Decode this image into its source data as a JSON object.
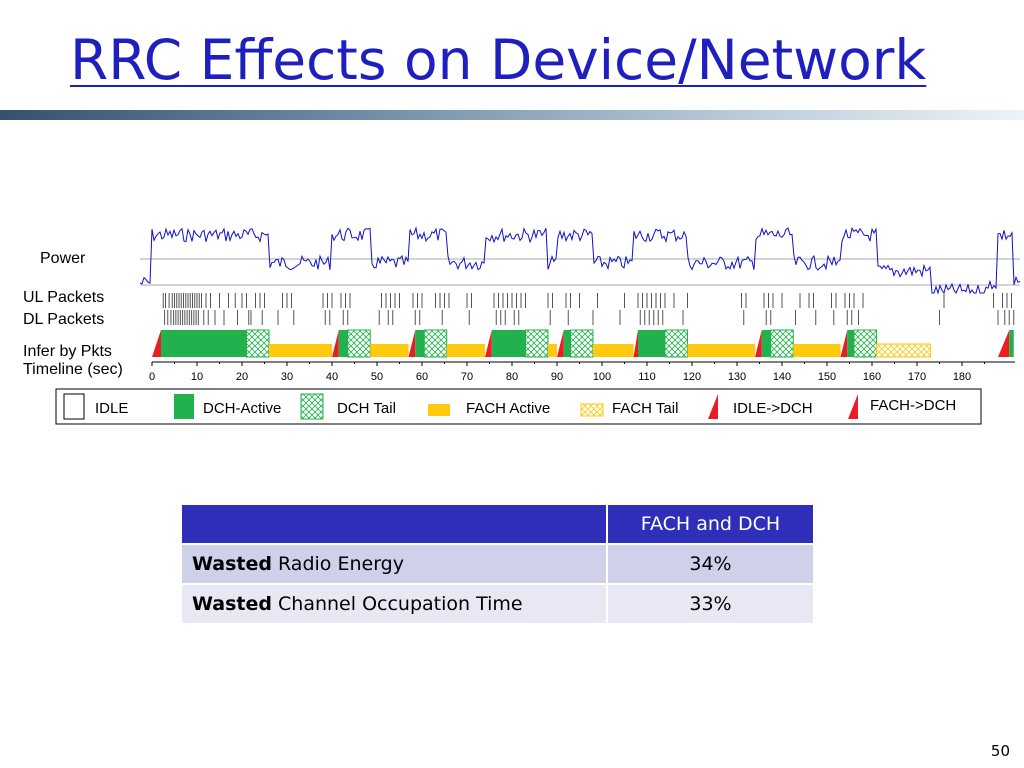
{
  "slide": {
    "title": "RRC Effects on Device/Network",
    "page_number": "50"
  },
  "diagram": {
    "row_labels": {
      "power": "Power",
      "ul_packets": "UL Packets",
      "dl_packets": "DL Packets",
      "infer": "Infer by Pkts",
      "timeline": "Timeline (sec)"
    },
    "timeline_ticks": [
      "0",
      "10",
      "20",
      "30",
      "40",
      "50",
      "60",
      "70",
      "80",
      "90",
      "100",
      "110",
      "120",
      "130",
      "140",
      "150",
      "160",
      "170",
      "180"
    ],
    "states": [
      {
        "state": "idle_to_dch",
        "start": 0,
        "end": 2
      },
      {
        "state": "dch_active",
        "start": 2,
        "end": 21
      },
      {
        "state": "dch_tail",
        "start": 21,
        "end": 26
      },
      {
        "state": "fach_active",
        "start": 26,
        "end": 40
      },
      {
        "state": "idle_to_dch",
        "start": 40,
        "end": 41.5
      },
      {
        "state": "dch_active",
        "start": 41.5,
        "end": 43.5
      },
      {
        "state": "dch_tail",
        "start": 43.5,
        "end": 48.5
      },
      {
        "state": "fach_active",
        "start": 48.5,
        "end": 57
      },
      {
        "state": "idle_to_dch",
        "start": 57,
        "end": 58.5
      },
      {
        "state": "dch_active",
        "start": 58.5,
        "end": 60.5
      },
      {
        "state": "dch_tail",
        "start": 60.5,
        "end": 65.5
      },
      {
        "state": "fach_active",
        "start": 65.5,
        "end": 74
      },
      {
        "state": "idle_to_dch",
        "start": 74,
        "end": 75.5
      },
      {
        "state": "dch_active",
        "start": 75.5,
        "end": 83
      },
      {
        "state": "dch_tail",
        "start": 83,
        "end": 88
      },
      {
        "state": "fach_active",
        "start": 88,
        "end": 90
      },
      {
        "state": "idle_to_dch",
        "start": 90,
        "end": 91.5
      },
      {
        "state": "dch_active",
        "start": 91.5,
        "end": 93
      },
      {
        "state": "dch_tail",
        "start": 93,
        "end": 98
      },
      {
        "state": "fach_active",
        "start": 98,
        "end": 107
      },
      {
        "state": "idle_to_dch",
        "start": 107,
        "end": 108
      },
      {
        "state": "dch_active",
        "start": 108,
        "end": 114
      },
      {
        "state": "dch_tail",
        "start": 114,
        "end": 119
      },
      {
        "state": "fach_active",
        "start": 119,
        "end": 134
      },
      {
        "state": "idle_to_dch",
        "start": 134,
        "end": 135.5
      },
      {
        "state": "dch_active",
        "start": 135.5,
        "end": 137.5
      },
      {
        "state": "dch_tail",
        "start": 137.5,
        "end": 142.5
      },
      {
        "state": "fach_active",
        "start": 142.5,
        "end": 153
      },
      {
        "state": "idle_to_dch",
        "start": 153,
        "end": 154.5
      },
      {
        "state": "dch_active",
        "start": 154.5,
        "end": 156
      },
      {
        "state": "dch_tail",
        "start": 156,
        "end": 161
      },
      {
        "state": "fach_tail",
        "start": 161,
        "end": 173
      },
      {
        "state": "idle_to_dch",
        "start": 188,
        "end": 190.5
      },
      {
        "state": "dch_active",
        "start": 190.5,
        "end": 191.5
      }
    ],
    "ul_packet_times": [
      2.5,
      3,
      3.8,
      4.5,
      5,
      5.5,
      6,
      6.5,
      7,
      7.5,
      8,
      8.5,
      9,
      9.5,
      10,
      10.5,
      11,
      12,
      13,
      15,
      17,
      18.5,
      20,
      21,
      23,
      24,
      25,
      29,
      30,
      31,
      38,
      39,
      40,
      42,
      43,
      44,
      51,
      52,
      53,
      54,
      55,
      58,
      59,
      60,
      63,
      64,
      65,
      66,
      70,
      71,
      76,
      77,
      78,
      79,
      80,
      81,
      82,
      83,
      88,
      89,
      92,
      93,
      95,
      99,
      105,
      108,
      109,
      110,
      111,
      112,
      113,
      114,
      116,
      119,
      131,
      132,
      136,
      137,
      138,
      140,
      144,
      146,
      147,
      151,
      152,
      154,
      155,
      156,
      158,
      176,
      187,
      189,
      190,
      191
    ],
    "dl_packet_times": [
      2.8,
      3.5,
      4.2,
      4.8,
      5.3,
      5.8,
      6.3,
      6.8,
      7.3,
      7.8,
      8.3,
      8.8,
      9.3,
      9.8,
      10.3,
      11.5,
      12.5,
      14,
      16,
      19,
      21.5,
      22,
      24.5,
      28,
      31.5,
      38.5,
      39.5,
      42.5,
      43.5,
      50.5,
      52.5,
      53.5,
      58.5,
      59.5,
      64.5,
      70.5,
      76.5,
      77.5,
      78.5,
      80.5,
      81.5,
      88.5,
      92.5,
      98,
      104,
      108.5,
      109.5,
      110.5,
      111.5,
      112.5,
      113.5,
      118,
      131.5,
      136.5,
      137.5,
      143,
      147.5,
      151.5,
      154.5,
      155.5,
      157,
      175,
      188,
      189.5,
      190.5,
      191.5
    ]
  },
  "legend": {
    "items": [
      {
        "key": "idle",
        "label": "IDLE"
      },
      {
        "key": "dch_active",
        "label": "DCH-Active"
      },
      {
        "key": "dch_tail",
        "label": "DCH Tail"
      },
      {
        "key": "fach_active",
        "label": "FACH Active"
      },
      {
        "key": "fach_tail",
        "label": "FACH Tail"
      },
      {
        "key": "idle_to_dch",
        "label": "IDLE->DCH"
      },
      {
        "key": "fach_to_dch",
        "label": "FACH->DCH"
      }
    ]
  },
  "colors": {
    "title": "#1f1fbf",
    "power_line": "#1010c8",
    "dch_active": "#22b14c",
    "dch_tail": "#22b14c",
    "fach_active": "#ffc90e",
    "fach_tail": "#ffc90e",
    "transition": "#ed1c24",
    "table_header": "#2e2eb8",
    "table_row_1": "#cfd0ea",
    "table_row_2": "#e8e8f5"
  },
  "table": {
    "header": [
      "",
      "FACH and DCH"
    ],
    "rows": [
      {
        "bold": "Wasted",
        "rest": " Radio Energy",
        "value": "34%"
      },
      {
        "bold": "Wasted",
        "rest": " Channel Occupation Time",
        "value": "33%"
      }
    ]
  }
}
